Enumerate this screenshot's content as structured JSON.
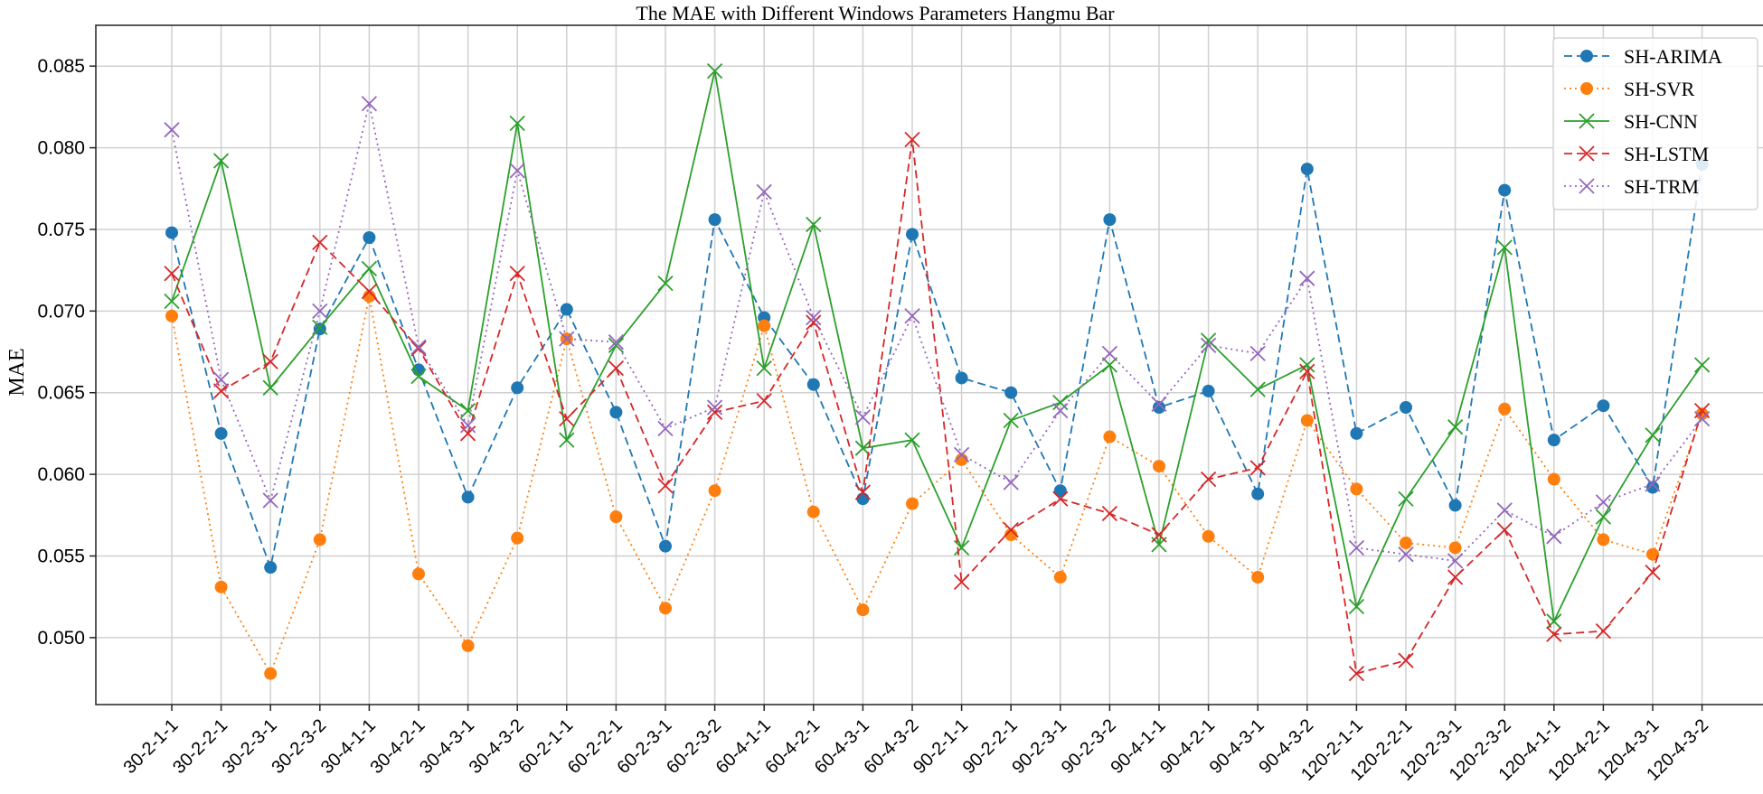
{
  "chart_data": {
    "type": "line",
    "title": "The MAE with Different Windows Parameters Hangmu Bar",
    "xlabel": "",
    "ylabel": "MAE",
    "ylim": [
      0.0459,
      0.0875
    ],
    "yticks": [
      "0.050",
      "0.055",
      "0.060",
      "0.065",
      "0.070",
      "0.075",
      "0.080",
      "0.085"
    ],
    "ytick_values": [
      0.05,
      0.055,
      0.06,
      0.065,
      0.07,
      0.075,
      0.08,
      0.085
    ],
    "grid": true,
    "legend_position": "top-right",
    "categories": [
      "30-2-1-1",
      "30-2-2-1",
      "30-2-3-1",
      "30-2-3-2",
      "30-4-1-1",
      "30-4-2-1",
      "30-4-3-1",
      "30-4-3-2",
      "60-2-1-1",
      "60-2-2-1",
      "60-2-3-1",
      "60-2-3-2",
      "60-4-1-1",
      "60-4-2-1",
      "60-4-3-1",
      "60-4-3-2",
      "90-2-1-1",
      "90-2-2-1",
      "90-2-3-1",
      "90-2-3-2",
      "90-4-1-1",
      "90-4-2-1",
      "90-4-3-1",
      "90-4-3-2",
      "120-2-1-1",
      "120-2-2-1",
      "120-2-3-1",
      "120-2-3-2",
      "120-4-1-1",
      "120-4-2-1",
      "120-4-3-1",
      "120-4-3-2"
    ],
    "series": [
      {
        "name": "SH-ARIMA",
        "color": "#1f77b4",
        "style": "dashed",
        "marker": "circle",
        "values": [
          0.0748,
          0.0625,
          0.0543,
          0.0689,
          0.0745,
          0.0664,
          0.0586,
          0.0653,
          0.0701,
          0.0638,
          0.0556,
          0.0756,
          0.0696,
          0.0655,
          0.0585,
          0.0747,
          0.0659,
          0.065,
          0.059,
          0.0756,
          0.0641,
          0.0651,
          0.0588,
          0.0787,
          0.0625,
          0.0641,
          0.0581,
          0.0774,
          0.0621,
          0.0642,
          0.0592,
          0.079
        ]
      },
      {
        "name": "SH-SVR",
        "color": "#ff7f0e",
        "style": "dotted",
        "marker": "circle",
        "values": [
          0.0697,
          0.0531,
          0.0478,
          0.056,
          0.0709,
          0.0539,
          0.0495,
          0.0561,
          0.0683,
          0.0574,
          0.0518,
          0.059,
          0.0691,
          0.0577,
          0.0517,
          0.0582,
          0.0609,
          0.0563,
          0.0537,
          0.0623,
          0.0605,
          0.0562,
          0.0537,
          0.0633,
          0.0591,
          0.0558,
          0.0555,
          0.064,
          0.0597,
          0.056,
          0.0551,
          0.0637
        ]
      },
      {
        "name": "SH-CNN",
        "color": "#2ca02c",
        "style": "solid",
        "marker": "x",
        "values": [
          0.0706,
          0.0792,
          0.0653,
          0.069,
          0.0726,
          0.066,
          0.0639,
          0.0815,
          0.0621,
          0.0679,
          0.0717,
          0.0847,
          0.0665,
          0.0753,
          0.0616,
          0.0621,
          0.0555,
          0.0633,
          0.0644,
          0.0667,
          0.0557,
          0.0682,
          0.0652,
          0.0667,
          0.0519,
          0.0585,
          0.0629,
          0.0739,
          0.051,
          0.0574,
          0.0624,
          0.0667
        ]
      },
      {
        "name": "SH-LSTM",
        "color": "#d62728",
        "style": "dashed",
        "marker": "x",
        "values": [
          0.0723,
          0.0651,
          0.0669,
          0.0742,
          0.0712,
          0.0677,
          0.0625,
          0.0723,
          0.0634,
          0.0665,
          0.0593,
          0.0638,
          0.0645,
          0.0693,
          0.0589,
          0.0805,
          0.0534,
          0.0566,
          0.0585,
          0.0576,
          0.0563,
          0.0597,
          0.0604,
          0.0663,
          0.0478,
          0.0486,
          0.0537,
          0.0566,
          0.0502,
          0.0504,
          0.054,
          0.0639
        ]
      },
      {
        "name": "SH-TRM",
        "color": "#9467bd",
        "style": "dotted",
        "marker": "x",
        "values": [
          0.0811,
          0.0658,
          0.0584,
          0.07,
          0.0827,
          0.0678,
          0.063,
          0.0786,
          0.0683,
          0.0681,
          0.0628,
          0.0641,
          0.0773,
          0.0696,
          0.0635,
          0.0697,
          0.0612,
          0.0595,
          0.0639,
          0.0674,
          0.0643,
          0.0679,
          0.0674,
          0.072,
          0.0555,
          0.0551,
          0.0547,
          0.0578,
          0.0562,
          0.0583,
          0.0594,
          0.0634
        ]
      }
    ]
  }
}
